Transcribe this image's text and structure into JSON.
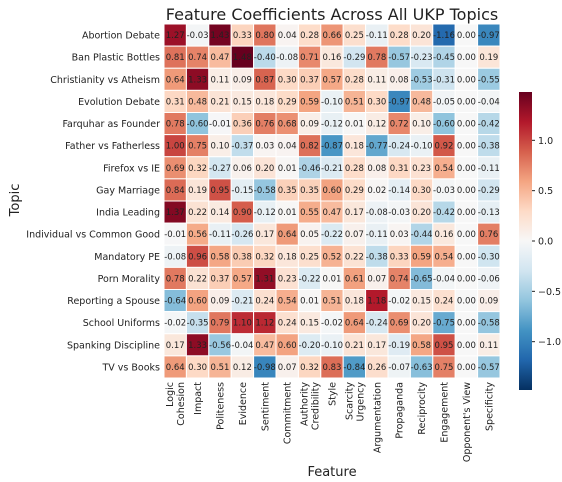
{
  "chart_data": {
    "type": "heatmap",
    "title": "Feature Coefficients Across All UKP Topics",
    "x_label": "Feature",
    "y_label": "Topic",
    "x_categories": [
      [
        "Logic",
        "Cohesion"
      ],
      [
        "Impact"
      ],
      [
        "Politeness"
      ],
      [
        "Evidence"
      ],
      [
        "Sentiment"
      ],
      [
        "Commitment"
      ],
      [
        "Authority",
        "Credibility"
      ],
      [
        "Style"
      ],
      [
        "Scarcity",
        "Urgency"
      ],
      [
        "Argumentation"
      ],
      [
        "Propaganda"
      ],
      [
        "Reciprocity"
      ],
      [
        "Engagement"
      ],
      [
        "Opponent's View"
      ],
      [
        "Specificity"
      ]
    ],
    "y_categories": [
      "Abortion Debate",
      "Ban Plastic Bottles",
      "Christianity vs Atheism",
      "Evolution Debate",
      "Farquhar as Founder",
      "Father vs Fatherless",
      "Firefox vs IE",
      "Gay Marriage",
      "India Leading",
      "Individual vs Common Good",
      "Mandatory PE",
      "Porn Morality",
      "Reporting a Spouse",
      "School Uniforms",
      "Spanking Discipline",
      "TV vs Books"
    ],
    "values": [
      [
        1.27,
        -0.03,
        1.43,
        0.33,
        0.8,
        0.04,
        0.28,
        0.66,
        0.25,
        -0.11,
        0.28,
        0.2,
        -1.16,
        0.0,
        -0.97
      ],
      [
        0.81,
        0.74,
        0.47,
        1.48,
        -0.4,
        -0.08,
        0.71,
        0.16,
        -0.29,
        0.78,
        -0.57,
        -0.23,
        -0.45,
        0.0,
        0.19
      ],
      [
        0.64,
        1.33,
        0.11,
        0.09,
        0.87,
        0.3,
        0.37,
        0.57,
        0.28,
        0.11,
        0.08,
        -0.53,
        -0.31,
        0.0,
        -0.55
      ],
      [
        0.31,
        0.48,
        0.21,
        0.15,
        0.18,
        0.29,
        0.59,
        -0.1,
        0.51,
        0.3,
        -0.97,
        0.48,
        -0.05,
        0.0,
        -0.04
      ],
      [
        0.78,
        -0.6,
        -0.01,
        0.36,
        0.76,
        0.68,
        0.09,
        -0.12,
        0.01,
        0.12,
        0.72,
        0.1,
        -0.6,
        0.0,
        -0.42
      ],
      [
        1.0,
        0.75,
        0.1,
        -0.37,
        0.03,
        0.04,
        0.82,
        -0.87,
        0.18,
        -0.77,
        -0.24,
        -0.1,
        0.92,
        0.0,
        -0.38
      ],
      [
        0.69,
        0.32,
        -0.27,
        0.06,
        0.2,
        0.01,
        -0.46,
        -0.21,
        0.28,
        0.08,
        0.31,
        0.23,
        0.54,
        0.0,
        -0.11
      ],
      [
        0.84,
        0.19,
        0.95,
        -0.15,
        -0.58,
        0.35,
        0.35,
        0.6,
        0.29,
        0.02,
        -0.14,
        0.3,
        -0.03,
        0.0,
        -0.29
      ],
      [
        1.37,
        0.22,
        0.14,
        0.9,
        -0.12,
        0.01,
        0.55,
        0.47,
        0.17,
        -0.08,
        -0.03,
        0.2,
        -0.42,
        0.0,
        -0.13
      ],
      [
        -0.01,
        0.56,
        -0.11,
        -0.26,
        0.17,
        0.64,
        0.05,
        -0.22,
        0.07,
        -0.11,
        0.03,
        -0.44,
        0.16,
        0.0,
        0.76
      ],
      [
        -0.08,
        0.96,
        0.58,
        0.38,
        0.32,
        0.18,
        0.25,
        0.52,
        0.22,
        -0.38,
        0.33,
        0.59,
        0.54,
        0.0,
        -0.3
      ],
      [
        0.78,
        0.22,
        0.37,
        0.57,
        1.31,
        0.23,
        -0.22,
        0.01,
        0.61,
        0.07,
        0.74,
        -0.65,
        -0.04,
        0.0,
        -0.06
      ],
      [
        -0.64,
        0.6,
        0.09,
        -0.21,
        0.24,
        0.54,
        0.01,
        0.51,
        0.18,
        1.18,
        -0.02,
        0.15,
        0.24,
        0.0,
        0.09
      ],
      [
        -0.02,
        -0.35,
        0.79,
        1.1,
        1.12,
        0.24,
        0.15,
        -0.02,
        0.64,
        -0.24,
        0.69,
        0.2,
        -0.75,
        0.0,
        -0.58
      ],
      [
        0.17,
        1.33,
        -0.56,
        -0.04,
        0.47,
        0.6,
        -0.2,
        -0.1,
        0.21,
        0.17,
        -0.19,
        0.58,
        0.95,
        0.0,
        0.11
      ],
      [
        0.64,
        0.3,
        0.51,
        0.12,
        -0.98,
        0.07,
        0.32,
        0.83,
        -0.84,
        0.26,
        -0.07,
        -0.63,
        0.75,
        0.0,
        -0.57
      ]
    ],
    "value_labels": [
      [
        "1.27",
        "-0.03",
        "1.43",
        "0.33",
        "0.80",
        "0.04",
        "0.28",
        "0.66",
        "0.25",
        "-0.11",
        "0.28",
        "0.20",
        "-1.16",
        "0.00",
        "-0.97"
      ],
      [
        "0.81",
        "0.74",
        "0.47",
        "1.48",
        "-0.40",
        "-0.08",
        "0.71",
        "0.16",
        "-0.29",
        "0.78",
        "-0.57",
        "-0.23",
        "-0.45",
        "0.00",
        "0.19"
      ],
      [
        "0.64",
        "1.33",
        "0.11",
        "0.09",
        "0.87",
        "0.30",
        "0.37",
        "0.57",
        "0.28",
        "0.11",
        "0.08",
        "-0.53",
        "-0.31",
        "0.00",
        "-0.55"
      ],
      [
        "0.31",
        "0.48",
        "0.21",
        "0.15",
        "0.18",
        "0.29",
        "0.59",
        "-0.10",
        "0.51",
        "0.30",
        "-0.97",
        "0.48",
        "-0.05",
        "0.00",
        "-0.04"
      ],
      [
        "0.78",
        "-0.60",
        "-0.01",
        "0.36",
        "0.76",
        "0.68",
        "0.09",
        "-0.12",
        "0.01",
        "0.12",
        "0.72",
        "0.10",
        "-0.60",
        "0.00",
        "-0.42"
      ],
      [
        "1.00",
        "0.75",
        "0.10",
        "-0.37",
        "0.03",
        "0.04",
        "0.82",
        "-0.87",
        "0.18",
        "-0.77",
        "-0.24",
        "-0.10",
        "0.92",
        "0.00",
        "-0.38"
      ],
      [
        "0.69",
        "0.32",
        "-0.27",
        "0.06",
        "0.20",
        "0.01",
        "-0.46",
        "-0.21",
        "0.28",
        "0.08",
        "0.31",
        "0.23",
        "0.54",
        "0.00",
        "-0.11"
      ],
      [
        "0.84",
        "0.19",
        "0.95",
        "-0.15",
        "-0.58",
        "0.35",
        "0.35",
        "0.60",
        "0.29",
        "0.02",
        "-0.14",
        "0.30",
        "-0.03",
        "0.00",
        "-0.29"
      ],
      [
        "1.37",
        "0.22",
        "0.14",
        "0.90",
        "-0.12",
        "0.01",
        "0.55",
        "0.47",
        "0.17",
        "-0.08",
        "-0.03",
        "0.20",
        "-0.42",
        "0.00",
        "-0.13"
      ],
      [
        "-0.01",
        "0.56",
        "-0.11",
        "-0.26",
        "0.17",
        "0.64",
        "0.05",
        "-0.22",
        "0.07",
        "-0.11",
        "0.03",
        "-0.44",
        "0.16",
        "0.00",
        "0.76"
      ],
      [
        "-0.08",
        "0.96",
        "0.58",
        "0.38",
        "0.32",
        "0.18",
        "0.25",
        "0.52",
        "0.22",
        "-0.38",
        "0.33",
        "0.59",
        "0.54",
        "0.00",
        "-0.30"
      ],
      [
        "0.78",
        "0.22",
        "0.37",
        "0.57",
        "1.31",
        "0.23",
        "-0.22",
        "0.01",
        "0.61",
        "0.07",
        "0.74",
        "-0.65",
        "-0.04",
        "0.00",
        "-0.06"
      ],
      [
        "-0.64",
        "0.60",
        "0.09",
        "-0.21",
        "0.24",
        "0.54",
        "0.01",
        "0.51",
        "0.18",
        "1.18",
        "-0.02",
        "0.15",
        "0.24",
        "0.00",
        "0.09"
      ],
      [
        "-0.02",
        "-0.35",
        "0.79",
        "1.10",
        "1.12",
        "0.24",
        "0.15",
        "-0.02",
        "0.64",
        "-0.24",
        "0.69",
        "0.20",
        "-0.75",
        "0.00",
        "-0.58"
      ],
      [
        "0.17",
        "1.33",
        "-0.56",
        "-0.04",
        "0.47",
        "0.60",
        "-0.20",
        "-0.10",
        "0.21",
        "0.17",
        "-0.19",
        "0.58",
        "0.95",
        "0.00",
        "0.11"
      ],
      [
        "0.64",
        "0.30",
        "0.51",
        "0.12",
        "-0.98",
        "0.07",
        "0.32",
        "0.83",
        "-0.84",
        "0.26",
        "-0.07",
        "-0.63",
        "0.75",
        "0.00",
        "-0.57"
      ]
    ],
    "colormap": "RdBu_r",
    "zlim": [
      -1.48,
      1.48
    ],
    "zticks": [
      {
        "value": -1,
        "label": "−1.0"
      },
      {
        "value": -0.5,
        "label": "−0.5"
      },
      {
        "value": 0,
        "label": "0.0"
      },
      {
        "value": 0.5,
        "label": "0.5"
      },
      {
        "value": 1,
        "label": "1.0"
      }
    ]
  }
}
